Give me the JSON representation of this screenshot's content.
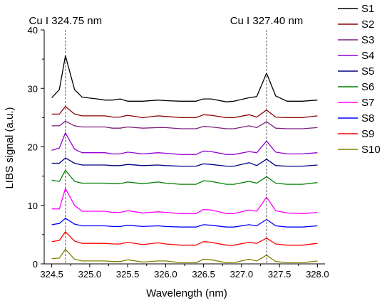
{
  "chart_data": {
    "type": "line",
    "xlabel": "Wavelength (nm)",
    "ylabel": "LIBS signal (a.u.)",
    "xlim": [
      324.4,
      328.1
    ],
    "ylim": [
      0,
      40
    ],
    "xticks": [
      "324.5",
      "325.0",
      "325.5",
      "326.0",
      "326.5",
      "327.0",
      "327.5",
      "328.0"
    ],
    "yticks": [
      "0",
      "10",
      "20",
      "30",
      "40"
    ],
    "grid": false,
    "legend_position": "right",
    "annotations": [
      {
        "text": "Cu I 324.75 nm",
        "x": 324.68
      },
      {
        "text": "Cu I 327.40 nm",
        "x": 327.33
      }
    ],
    "x": [
      324.5,
      324.6,
      324.68,
      324.8,
      324.9,
      325.1,
      325.2,
      325.3,
      325.4,
      325.5,
      325.7,
      325.9,
      326.0,
      326.2,
      326.4,
      326.5,
      326.6,
      326.8,
      326.9,
      327.1,
      327.2,
      327.33,
      327.45,
      327.6,
      327.8,
      328.0
    ],
    "series": [
      {
        "name": "S1",
        "color": "#000000",
        "values": [
          28.4,
          29.8,
          35.6,
          29.8,
          28.5,
          28.2,
          28.0,
          28.0,
          28.2,
          27.8,
          27.8,
          28.0,
          27.9,
          27.8,
          27.8,
          28.2,
          28.2,
          27.7,
          27.8,
          28.4,
          28.6,
          32.6,
          28.7,
          27.8,
          27.8,
          28.0
        ]
      },
      {
        "name": "S2",
        "color": "#8b0000",
        "values": [
          25.6,
          25.6,
          26.9,
          25.6,
          25.3,
          25.3,
          25.3,
          25.1,
          25.1,
          25.4,
          25.0,
          25.3,
          25.2,
          25.0,
          25.0,
          25.5,
          25.4,
          25.0,
          25.0,
          25.5,
          25.1,
          26.3,
          25.1,
          25.0,
          25.0,
          25.3
        ]
      },
      {
        "name": "S3",
        "color": "#7b1f7b",
        "values": [
          23.6,
          23.6,
          24.4,
          23.6,
          23.4,
          23.4,
          23.4,
          23.2,
          23.2,
          23.4,
          23.2,
          23.3,
          23.3,
          23.1,
          23.1,
          23.5,
          23.4,
          23.1,
          23.1,
          23.6,
          23.3,
          24.3,
          23.2,
          23.1,
          23.1,
          23.3
        ]
      },
      {
        "name": "S4",
        "color": "#9400d3",
        "values": [
          19.4,
          19.8,
          22.4,
          19.6,
          19.0,
          19.0,
          19.0,
          18.8,
          18.8,
          19.1,
          18.8,
          19.0,
          18.9,
          18.7,
          18.7,
          19.3,
          19.2,
          18.7,
          18.7,
          19.2,
          19.0,
          21.0,
          19.1,
          18.8,
          18.8,
          19.0
        ]
      },
      {
        "name": "S5",
        "color": "#000080",
        "values": [
          17.2,
          17.2,
          18.1,
          17.2,
          16.9,
          16.9,
          16.9,
          16.8,
          16.8,
          17.0,
          16.8,
          16.9,
          16.8,
          16.7,
          16.7,
          17.1,
          17.0,
          16.7,
          16.7,
          17.3,
          16.8,
          17.9,
          16.8,
          16.7,
          16.7,
          16.9
        ]
      },
      {
        "name": "S6",
        "color": "#008000",
        "values": [
          14.3,
          14.1,
          16.0,
          14.1,
          13.8,
          13.8,
          13.8,
          13.7,
          13.7,
          14.0,
          13.7,
          14.0,
          13.8,
          13.6,
          13.6,
          14.2,
          14.1,
          13.6,
          13.6,
          14.1,
          13.8,
          14.9,
          13.8,
          13.6,
          13.6,
          13.9
        ]
      },
      {
        "name": "S7",
        "color": "#ff00ff",
        "values": [
          9.4,
          9.4,
          12.9,
          10.0,
          9.0,
          9.0,
          9.0,
          8.8,
          8.8,
          9.1,
          8.7,
          8.9,
          8.8,
          8.6,
          8.6,
          9.3,
          9.2,
          8.6,
          8.6,
          9.2,
          9.0,
          11.4,
          9.1,
          8.7,
          8.6,
          8.8
        ]
      },
      {
        "name": "S8",
        "color": "#0000ff",
        "values": [
          6.7,
          6.9,
          7.8,
          6.8,
          6.5,
          6.5,
          6.5,
          6.4,
          6.4,
          6.6,
          6.4,
          6.5,
          6.4,
          6.3,
          6.3,
          6.7,
          6.6,
          6.3,
          6.3,
          6.7,
          6.5,
          7.6,
          6.5,
          6.3,
          6.3,
          6.5
        ]
      },
      {
        "name": "S9",
        "color": "#ff0000",
        "values": [
          3.8,
          4.0,
          5.5,
          3.9,
          3.5,
          3.5,
          3.5,
          3.4,
          3.4,
          3.7,
          3.3,
          3.6,
          3.4,
          3.2,
          3.2,
          3.8,
          3.7,
          3.2,
          3.2,
          3.7,
          3.5,
          4.4,
          3.4,
          3.2,
          3.2,
          3.5
        ]
      },
      {
        "name": "S10",
        "color": "#808000",
        "values": [
          0.9,
          1.0,
          2.5,
          0.8,
          0.5,
          0.5,
          0.5,
          0.4,
          0.4,
          0.7,
          0.3,
          0.5,
          0.5,
          0.2,
          0.2,
          0.8,
          0.7,
          0.2,
          0.2,
          0.8,
          0.5,
          1.5,
          0.4,
          0.2,
          0.2,
          0.5
        ]
      }
    ]
  }
}
